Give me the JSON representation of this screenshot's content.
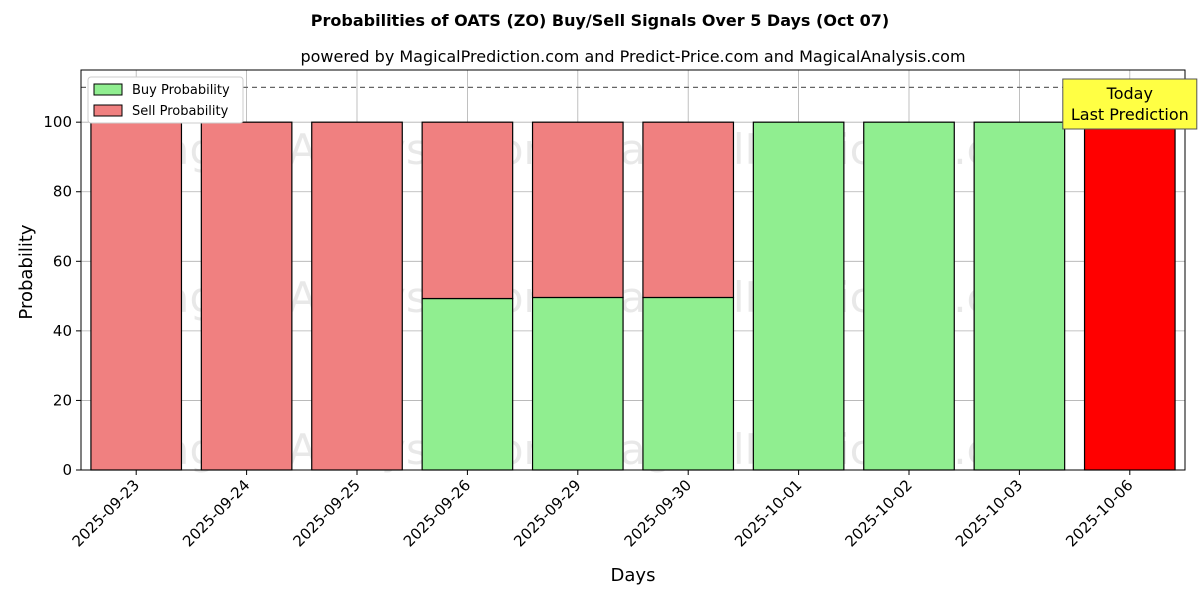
{
  "chart_data": {
    "type": "bar",
    "stacked": true,
    "title": "Probabilities of OATS (ZO) Buy/Sell Signals Over 5 Days (Oct 07)",
    "subtitle": "powered by MagicalPrediction.com and Predict-Price.com and MagicalAnalysis.com",
    "xlabel": "Days",
    "ylabel": "Probability",
    "ylim": [
      0,
      115
    ],
    "yticks": [
      0,
      20,
      40,
      60,
      80,
      100
    ],
    "grid": true,
    "legend_position": "top-left",
    "reference_line": 110,
    "categories": [
      "2025-09-23",
      "2025-09-24",
      "2025-09-25",
      "2025-09-26",
      "2025-09-29",
      "2025-09-30",
      "2025-10-01",
      "2025-10-02",
      "2025-10-03",
      "2025-10-06"
    ],
    "series": [
      {
        "name": "Buy Probability",
        "color": "#90ee90",
        "values": [
          0,
          0,
          0,
          49.3,
          49.6,
          49.6,
          100,
          100,
          100,
          0
        ]
      },
      {
        "name": "Sell Probability",
        "color": "#f08080",
        "values": [
          100,
          100,
          100,
          50.7,
          50.4,
          50.4,
          0,
          0,
          0,
          100
        ]
      }
    ],
    "highlight": {
      "category": "2025-10-06",
      "color": "#ff0000",
      "annotation": [
        "Today",
        "Last Prediction"
      ],
      "annotation_bg": "#ffff44"
    },
    "watermarks": [
      "MagicalAnalysis.com",
      "MagicalPrediction.com"
    ]
  }
}
